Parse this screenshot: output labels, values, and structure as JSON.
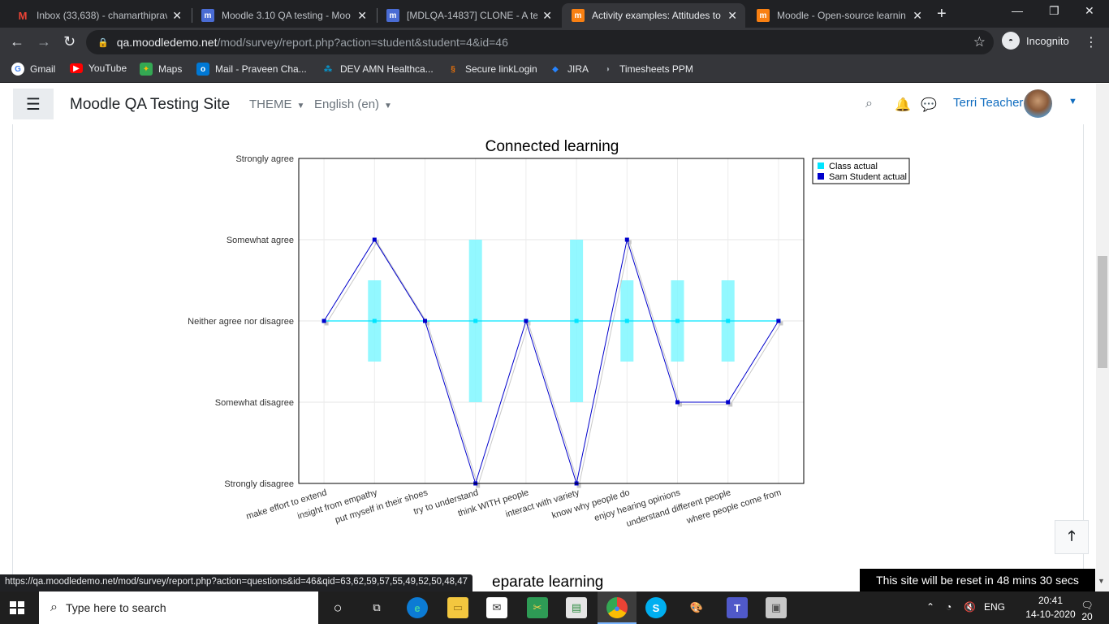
{
  "browser": {
    "tabs": [
      {
        "title": "Inbox (33,638) - chamarthiprav",
        "icon": "gmail-icon",
        "color": "#ea4335",
        "glyph": "M",
        "active": false
      },
      {
        "title": "Moodle 3.10 QA testing - Moo",
        "icon": "moodle-icon",
        "color": "#4a6cd4",
        "glyph": "m",
        "active": false
      },
      {
        "title": "[MDLQA-14837] CLONE - A te",
        "icon": "moodle-icon",
        "color": "#4a6cd4",
        "glyph": "m",
        "active": false
      },
      {
        "title": "Activity examples: Attitudes to",
        "icon": "moodle-icon",
        "color": "#f98012",
        "glyph": "m",
        "active": true
      },
      {
        "title": "Moodle - Open-source learnin",
        "icon": "moodle-icon",
        "color": "#f98012",
        "glyph": "m",
        "active": false
      }
    ],
    "address": {
      "host": "qa.moodledemo.net",
      "path": "/mod/survey/report.php?action=student&student=4&id=46"
    },
    "incognito_label": "Incognito",
    "bookmarks": [
      {
        "label": "Gmail",
        "icon": "google-icon",
        "color": "#4285f4"
      },
      {
        "label": "YouTube",
        "icon": "youtube-icon",
        "color": "#ff0000"
      },
      {
        "label": "Maps",
        "icon": "maps-icon",
        "color": "#34a853"
      },
      {
        "label": "Mail - Praveen Cha...",
        "icon": "outlook-icon",
        "color": "#0078d4"
      },
      {
        "label": "DEV AMN Healthca...",
        "icon": "amn-icon",
        "color": "#00a3e0"
      },
      {
        "label": "Secure linkLogin",
        "icon": "link-icon",
        "color": "#e8710a"
      },
      {
        "label": "JIRA",
        "icon": "jira-icon",
        "color": "#2684ff"
      },
      {
        "label": "Timesheets PPM",
        "icon": "timesheet-icon",
        "color": "#9aa0a6"
      }
    ],
    "status_url": "https://qa.moodledemo.net/mod/survey/report.php?action=questions&id=46&qid=63,62,59,57,55,49,52,50,48,47"
  },
  "moodle": {
    "site_name": "Moodle QA Testing Site",
    "theme_label": "THEME",
    "language_label": "English (en)",
    "user_name": "Terri Teacher"
  },
  "chart_data": {
    "type": "line",
    "title": "Connected learning",
    "y_levels": [
      "Strongly disagree",
      "Somewhat disagree",
      "Neither agree nor disagree",
      "Somewhat agree",
      "Strongly agree"
    ],
    "ylim": [
      1,
      5
    ],
    "categories": [
      "make effort to extend",
      "insight from empathy",
      "put myself in their shoes",
      "try to understand",
      "think WITH people",
      "interact with variety",
      "know why people do",
      "enjoy hearing opinions",
      "understand different people",
      "where people come from"
    ],
    "series": [
      {
        "name": "Class actual",
        "color": "#00e5ff",
        "values": [
          3,
          3,
          3,
          3,
          3,
          3,
          3,
          3,
          3,
          3
        ],
        "range_low": [
          3,
          2.5,
          3,
          2,
          3,
          2,
          2.5,
          2.5,
          2.5,
          3
        ],
        "range_high": [
          3,
          3.5,
          3,
          4,
          3,
          4,
          3.5,
          3.5,
          3.5,
          3
        ]
      },
      {
        "name": "Sam Student actual",
        "color": "#0000cc",
        "values": [
          3,
          4,
          3,
          1,
          3,
          1,
          4,
          2,
          2,
          3
        ]
      }
    ],
    "grid": true,
    "legend": "top-right"
  },
  "page": {
    "next_section_title": "eparate learning",
    "reset_notice": "This site will be reset in 48 mins 30 secs"
  },
  "taskbar": {
    "search_placeholder": "Type here to search",
    "language": "ENG",
    "time": "20:41",
    "date": "14-10-2020",
    "notifications": "20"
  }
}
